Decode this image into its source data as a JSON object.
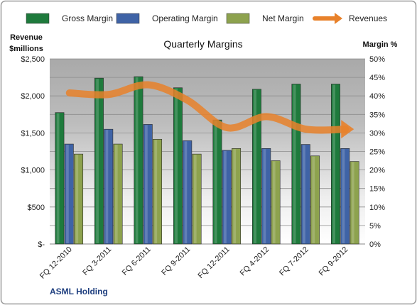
{
  "chart_data": {
    "type": "bar",
    "title": "Quarterly Margins",
    "company": "ASML Holding",
    "y_left_label": [
      "Revenue",
      "$millions"
    ],
    "y_right_label": "Margin %",
    "categories": [
      "FQ 12-2010",
      "FQ 3-2011",
      "FQ 6-2011",
      "FQ 9-2011",
      "FQ 12-2011",
      "FQ 4-2012",
      "FQ 7-2012",
      "FQ 9-2012"
    ],
    "ylim_left": [
      0,
      2500
    ],
    "ylim_right": [
      0,
      50
    ],
    "left_ticks": [
      "$-",
      "$500",
      "$1,000",
      "$1,500",
      "$2,000",
      "$2,500"
    ],
    "right_ticks": [
      "0%",
      "5%",
      "10%",
      "15%",
      "20%",
      "25%",
      "30%",
      "35%",
      "40%",
      "45%",
      "50%"
    ],
    "grid": "horizontal",
    "legend_position": "top",
    "series": [
      {
        "name": "Gross Margin",
        "axis": "right",
        "color": "#1e7a3c",
        "values": [
          35.5,
          44.8,
          45.2,
          42.2,
          33.5,
          41.8,
          43.2,
          43.2
        ]
      },
      {
        "name": "Operating Margin",
        "axis": "right",
        "color": "#3f63a6",
        "values": [
          27.0,
          31.0,
          32.3,
          27.9,
          25.3,
          25.8,
          26.9,
          25.8
        ]
      },
      {
        "name": "Net Margin",
        "axis": "right",
        "color": "#8da24e",
        "values": [
          24.3,
          27.0,
          28.3,
          24.3,
          25.8,
          22.5,
          23.8,
          22.3
        ]
      },
      {
        "name": "Revenues",
        "type": "line",
        "axis": "left",
        "color": "#e8812a",
        "values": [
          2040,
          2020,
          2150,
          1940,
          1570,
          1720,
          1550,
          1550
        ]
      }
    ]
  }
}
